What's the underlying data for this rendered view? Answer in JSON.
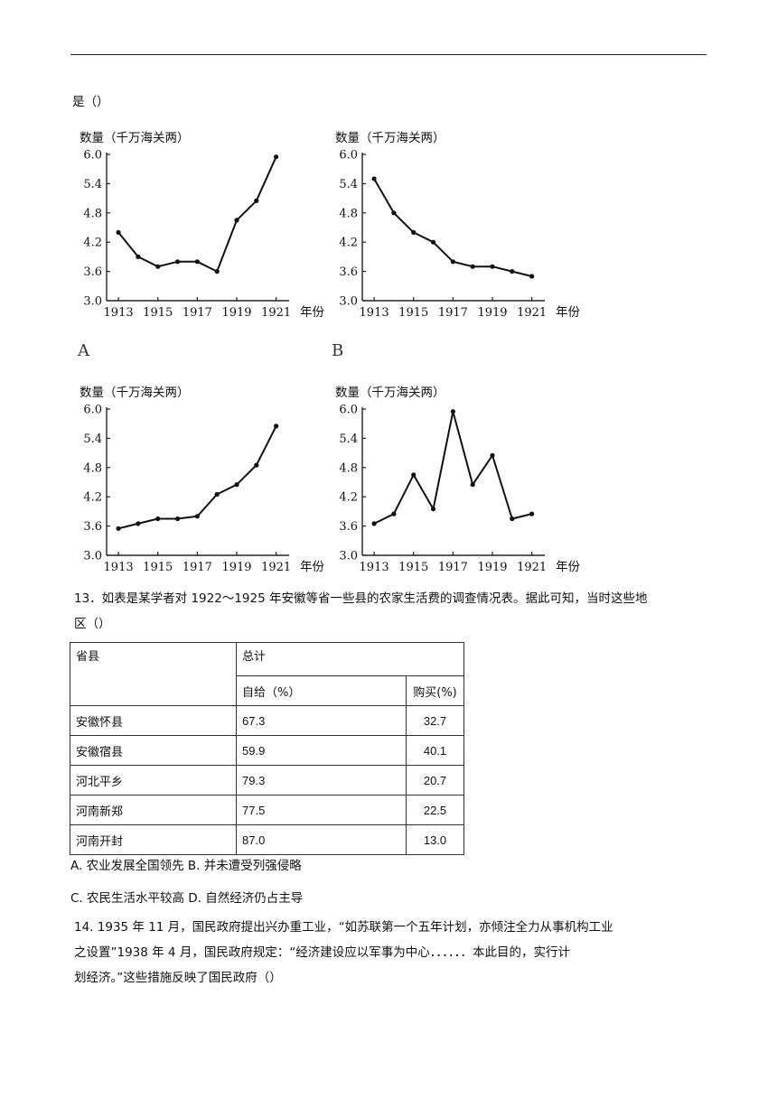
{
  "q12": {
    "tail": "是（）"
  },
  "chart_data": [
    {
      "type": "line",
      "label": "A",
      "ylabel": "数量（千万海关两）",
      "xlabel": "年份",
      "yticks": [
        "6.0",
        "5.4",
        "4.8",
        "4.2",
        "3.6",
        "3.0"
      ],
      "xticks": [
        "1913",
        "1915",
        "1917",
        "1919",
        "1921"
      ],
      "ylim": [
        3.0,
        6.0
      ],
      "x": [
        1913,
        1914,
        1915,
        1916,
        1917,
        1918,
        1919,
        1920,
        1921
      ],
      "values": [
        4.4,
        3.9,
        3.7,
        3.8,
        3.8,
        3.6,
        4.65,
        5.05,
        5.95
      ]
    },
    {
      "type": "line",
      "label": "B",
      "ylabel": "数量（千万海关两）",
      "xlabel": "年份",
      "yticks": [
        "6.0",
        "5.4",
        "4.8",
        "4.2",
        "3.6",
        "3.0"
      ],
      "xticks": [
        "1913",
        "1915",
        "1917",
        "1919",
        "1921"
      ],
      "ylim": [
        3.0,
        6.0
      ],
      "x": [
        1913,
        1914,
        1915,
        1916,
        1917,
        1918,
        1919,
        1920,
        1921
      ],
      "values": [
        5.5,
        4.8,
        4.4,
        4.2,
        3.8,
        3.7,
        3.7,
        3.6,
        3.5
      ]
    },
    {
      "type": "line",
      "label": "",
      "ylabel": "数量（千万海关两）",
      "xlabel": "年份",
      "yticks": [
        "6.0",
        "5.4",
        "4.8",
        "4.2",
        "3.6",
        "3.0"
      ],
      "xticks": [
        "1913",
        "1915",
        "1917",
        "1919",
        "1921"
      ],
      "ylim": [
        3.0,
        6.0
      ],
      "x": [
        1913,
        1914,
        1915,
        1916,
        1917,
        1918,
        1919,
        1920,
        1921
      ],
      "values": [
        3.55,
        3.65,
        3.75,
        3.75,
        3.8,
        4.25,
        4.45,
        4.85,
        5.65
      ]
    },
    {
      "type": "line",
      "label": "",
      "ylabel": "数量（千万海关两）",
      "xlabel": "年份",
      "yticks": [
        "6.0",
        "5.4",
        "4.8",
        "4.2",
        "3.6",
        "3.0"
      ],
      "xticks": [
        "1913",
        "1915",
        "1917",
        "1919",
        "1921"
      ],
      "ylim": [
        3.0,
        6.0
      ],
      "x": [
        1913,
        1914,
        1915,
        1916,
        1917,
        1918,
        1919,
        1920,
        1921
      ],
      "values": [
        3.65,
        3.85,
        4.65,
        3.95,
        5.95,
        4.45,
        5.05,
        3.75,
        3.85
      ]
    }
  ],
  "q13": {
    "line1": "13．如表是某学者对 1922～1925 年安徽等省一些县的农家生活费的调查情况表。据此可知，当时这些地",
    "line2": "区（）",
    "table": {
      "h_province": "省县",
      "h_total": "总计",
      "h_self": "自给（%）",
      "h_buy": "购买(%)",
      "rows": [
        {
          "name": "安徽怀县",
          "self": "67.3",
          "buy": "32.7"
        },
        {
          "name": "安徽宿县",
          "self": "59.9",
          "buy": "40.1"
        },
        {
          "name": "河北平乡",
          "self": "79.3",
          "buy": "20.7"
        },
        {
          "name": "河南新郑",
          "self": "77.5",
          "buy": "22.5"
        },
        {
          "name": "河南开封",
          "self": "87.0",
          "buy": "13.0"
        }
      ]
    },
    "optAB": "A. 农业发展全国领先 B. 并未遭受列强侵略",
    "optCD": "C. 农民生活水平较高 D. 自然经济仍占主导"
  },
  "q14": {
    "line1": "14. 1935 年 11 月，国民政府提出兴办重工业，“如苏联第一个五年计划，亦倾注全力从事机构工业",
    "line2": "之设置”1938 年 4 月，国民政府规定：“经济建设应以军事为中心．．．．．．本此目的，实行计",
    "line3": "划经济。”这些措施反映了国民政府（）"
  }
}
